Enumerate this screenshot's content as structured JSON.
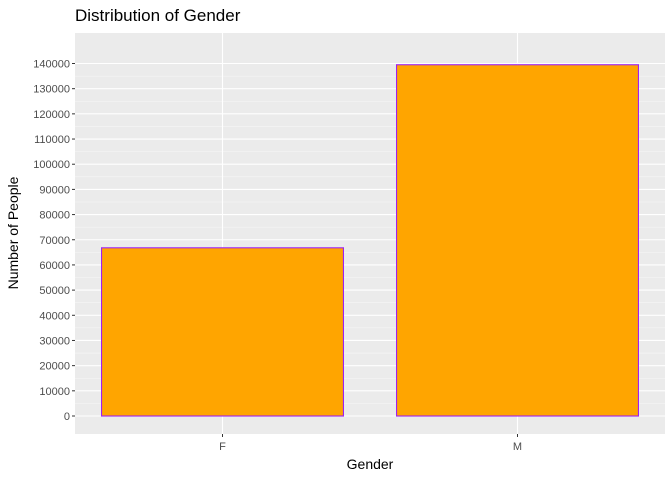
{
  "chart_data": {
    "type": "bar",
    "title": "Distribution of Gender",
    "xlabel": "Gender",
    "ylabel": "Number of People",
    "categories": [
      "F",
      "M"
    ],
    "values": [
      66800,
      139500
    ],
    "ylim": [
      0,
      140000
    ],
    "yticks": [
      0,
      10000,
      20000,
      30000,
      40000,
      50000,
      60000,
      70000,
      80000,
      90000,
      100000,
      110000,
      120000,
      130000,
      140000
    ],
    "grid": true,
    "colors": {
      "bar_fill": "#FFA500",
      "bar_outline": "#A020F0",
      "panel_background": "#EBEBEB",
      "grid_major": "#FFFFFF"
    }
  }
}
